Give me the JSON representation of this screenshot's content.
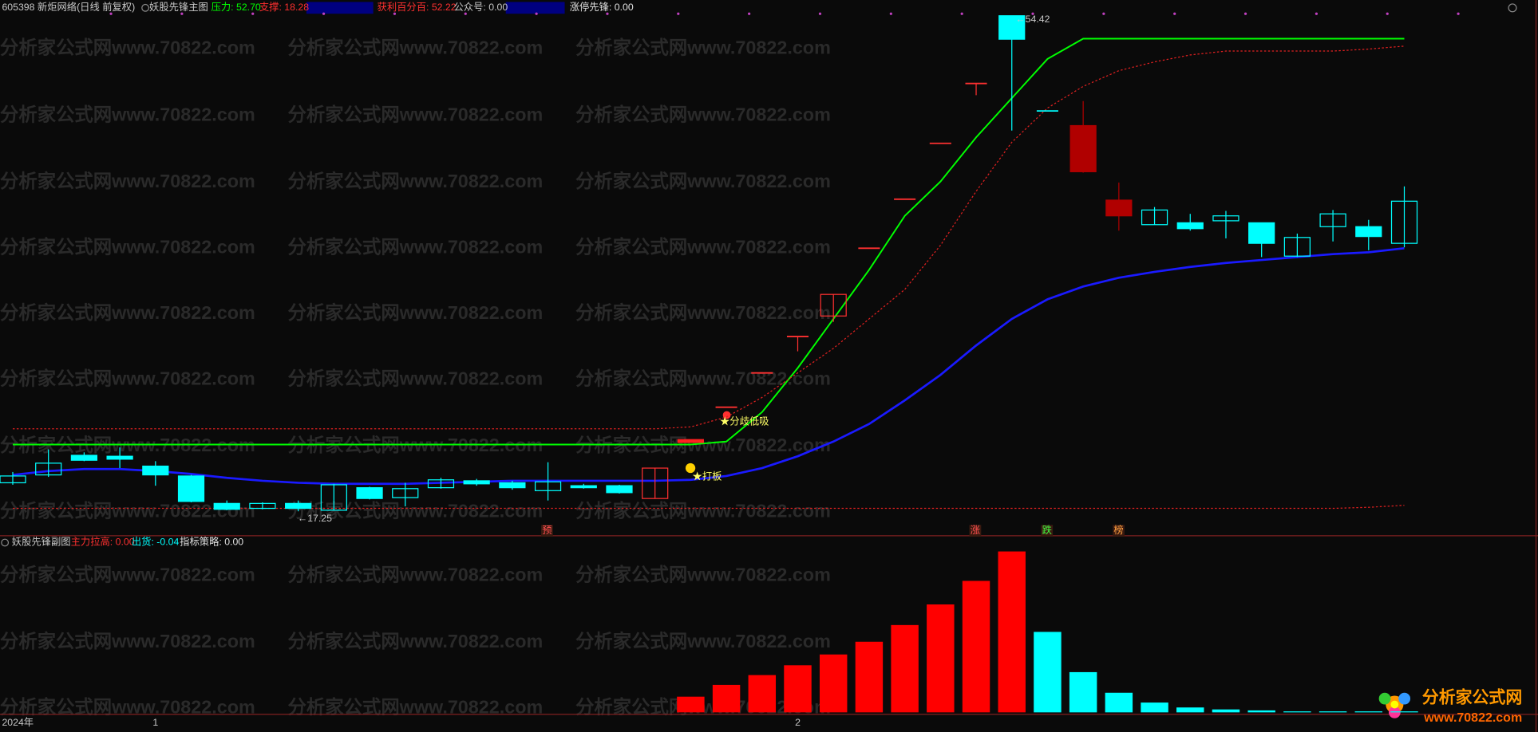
{
  "watermark": "分析家公式网www.70822.com",
  "logo": {
    "title": "分析家公式网",
    "url": "www.70822.com"
  },
  "chart_data": [
    {
      "type": "candlestick",
      "header": [
        {
          "text": "605398 新炬网络(日线 前复权)",
          "color": "#c8c8c8"
        },
        {
          "text": "妖股先锋主图",
          "color": "#c8c8c8"
        },
        {
          "text": "压力: 52.70",
          "color": "#00ff00"
        },
        {
          "text": "支撑: 18.28",
          "color": "#ff3030"
        },
        {
          "text": "获利百分百: 52.22",
          "color": "#ff3030"
        },
        {
          "text": "公众号: 0.00",
          "color": "#c8c8c8"
        },
        {
          "text": "涨停先锋: 0.00",
          "color": "#e0e0e0"
        }
      ],
      "categories": [
        "2024年",
        null,
        null,
        null,
        "1",
        null,
        null,
        null,
        null,
        null,
        null,
        null,
        null,
        null,
        null,
        null,
        null,
        null,
        null,
        null,
        null,
        null,
        "2",
        null,
        null,
        null,
        null,
        null,
        null,
        null,
        null,
        null,
        null,
        null,
        null,
        null,
        null,
        null,
        null,
        null
      ],
      "open": [
        19.39,
        19.98,
        21.45,
        21.38,
        20.64,
        19.9,
        17.84,
        17.47,
        17.84,
        17.33,
        19.02,
        18.28,
        19.02,
        19.54,
        19.39,
        18.8,
        19.17,
        19.17,
        18.21,
        22.41,
        25.06,
        27.63,
        30.36,
        31.9,
        36.98,
        40.66,
        44.85,
        49.34,
        54.42,
        47.28,
        46.18,
        40.59,
        38.75,
        38.89,
        39.04,
        38.89,
        36.39,
        38.6,
        38.6,
        37.35
      ],
      "close": [
        19.9,
        20.86,
        21.08,
        21.16,
        19.98,
        17.99,
        17.4,
        17.84,
        17.47,
        19.24,
        18.21,
        18.95,
        19.61,
        19.31,
        19.02,
        19.46,
        19.02,
        18.65,
        20.49,
        22.63,
        25.06,
        27.63,
        30.36,
        33.52,
        36.98,
        40.66,
        44.85,
        49.34,
        52.66,
        47.28,
        42.72,
        39.41,
        39.85,
        38.45,
        39.41,
        37.35,
        37.79,
        39.56,
        37.86,
        40.51
      ],
      "high": [
        20.2,
        21.89,
        21.67,
        22.04,
        21.01,
        19.98,
        18.06,
        17.92,
        18.06,
        19.31,
        19.09,
        19.39,
        19.76,
        19.68,
        19.54,
        20.93,
        19.31,
        19.24,
        20.49,
        22.63,
        25.06,
        27.63,
        30.36,
        33.52,
        36.98,
        40.66,
        44.85,
        49.34,
        54.42,
        47.28,
        48.02,
        41.91,
        40.07,
        39.56,
        39.78,
        38.89,
        38.08,
        39.85,
        39.11,
        41.62
      ],
      "low": [
        19.24,
        19.83,
        21.01,
        20.49,
        19.17,
        17.92,
        17.33,
        17.4,
        17.25,
        17.3,
        18.14,
        17.62,
        18.95,
        19.17,
        18.87,
        18.06,
        18.95,
        18.58,
        18.21,
        22.41,
        25.06,
        27.63,
        29.25,
        31.46,
        36.98,
        40.66,
        44.85,
        48.46,
        45.81,
        47.28,
        42.65,
        38.3,
        38.75,
        38.3,
        37.72,
        36.32,
        36.32,
        37.49,
        36.83,
        37.05
      ],
      "colors": [
        "#00ffff",
        "#00ffff",
        "#00ffff",
        "#00ffff",
        "#00ffff",
        "#00ffff",
        "#00ffff",
        "#00ffff",
        "#00ffff",
        "#00ffff",
        "#00ffff",
        "#00ffff",
        "#00ffff",
        "#00ffff",
        "#00ffff",
        "#00ffff",
        "#00ffff",
        "#00ffff",
        "#ff3030",
        "#ff2020",
        "#ff3030",
        "#ff3030",
        "#ff3030",
        "#ff3030",
        "#ff3030",
        "#ff3030",
        "#ff3030",
        "#ff3030",
        "#00ffff",
        "#00ffff",
        "#b00000",
        "#b00000",
        "#00ffff",
        "#00ffff",
        "#00ffff",
        "#00ffff",
        "#00ffff",
        "#00ffff",
        "#00ffff",
        "#00ffff"
      ],
      "hollow": [
        true,
        true,
        false,
        false,
        false,
        false,
        false,
        true,
        false,
        true,
        false,
        true,
        true,
        false,
        false,
        true,
        false,
        false,
        true,
        false,
        false,
        false,
        false,
        true,
        false,
        false,
        false,
        false,
        false,
        true,
        false,
        false,
        true,
        false,
        true,
        false,
        true,
        true,
        false,
        true
      ],
      "lines": [
        {
          "color": "#00ff00",
          "dash": false,
          "width": 1.6,
          "values": [
            22.26,
            22.26,
            22.26,
            22.26,
            22.26,
            22.26,
            22.26,
            22.26,
            22.26,
            22.26,
            22.26,
            22.26,
            22.26,
            22.26,
            22.26,
            22.26,
            22.26,
            22.26,
            22.26,
            22.26,
            22.48,
            24.69,
            28.0,
            31.68,
            35.36,
            39.41,
            41.98,
            45.3,
            48.24,
            51.18,
            52.7,
            52.7,
            52.7,
            52.7,
            52.7,
            52.7,
            52.7,
            52.7,
            52.7,
            52.7
          ]
        },
        {
          "color": "#e02020",
          "dash": true,
          "width": 1,
          "values": [
            23.44,
            23.44,
            23.44,
            23.44,
            23.44,
            23.44,
            23.44,
            23.44,
            23.44,
            23.44,
            23.44,
            23.44,
            23.44,
            23.44,
            23.44,
            23.44,
            23.44,
            23.44,
            23.44,
            23.58,
            24.32,
            25.79,
            27.63,
            29.47,
            31.68,
            33.89,
            37.2,
            41.25,
            44.93,
            47.5,
            49.12,
            50.3,
            50.96,
            51.48,
            51.77,
            51.77,
            51.77,
            51.77,
            51.92,
            52.14
          ]
        },
        {
          "color": "#e02020",
          "dash": true,
          "width": 1,
          "values": [
            17.47,
            17.47,
            17.47,
            17.47,
            17.47,
            17.47,
            17.47,
            17.47,
            17.47,
            17.47,
            17.47,
            17.47,
            17.47,
            17.47,
            17.47,
            17.47,
            17.47,
            17.47,
            17.47,
            17.47,
            17.47,
            17.47,
            17.47,
            17.47,
            17.47,
            17.47,
            17.47,
            17.47,
            17.47,
            17.47,
            17.47,
            17.47,
            17.47,
            17.47,
            17.47,
            17.47,
            17.47,
            17.47,
            17.55,
            17.7
          ]
        },
        {
          "color": "#1a1aff",
          "dash": false,
          "width": 2.2,
          "values": [
            19.98,
            20.27,
            20.42,
            20.42,
            20.27,
            20.05,
            19.76,
            19.54,
            19.39,
            19.31,
            19.31,
            19.31,
            19.39,
            19.46,
            19.54,
            19.54,
            19.54,
            19.54,
            19.54,
            19.61,
            19.9,
            20.49,
            21.38,
            22.48,
            23.8,
            25.57,
            27.48,
            29.69,
            31.68,
            33.15,
            34.11,
            34.77,
            35.21,
            35.58,
            35.88,
            36.1,
            36.32,
            36.54,
            36.68,
            36.98
          ]
        }
      ],
      "annotations": [
        {
          "text": "←17.25",
          "color": "#c8c8c8"
        },
        {
          "text": "←54.42",
          "color": "#c8c8c8"
        },
        {
          "text": "★分歧低吸",
          "color": "#ffff66"
        },
        {
          "text": "★打板",
          "color": "#ffff66"
        },
        {
          "text": "预",
          "color": "#ff5050"
        },
        {
          "text": "涨",
          "color": "#ff5050"
        },
        {
          "text": "跌",
          "color": "#40ff40"
        },
        {
          "text": "榜",
          "color": "#ffa040"
        }
      ],
      "ylim": [
        15.49,
        55.6
      ]
    },
    {
      "type": "bar",
      "header": [
        {
          "text": "妖股先锋副图",
          "color": "#c8c8c8"
        },
        {
          "text": "主力拉高: 0.00",
          "color": "#ff3030"
        },
        {
          "text": "出货: -0.04",
          "color": "#00ffff"
        },
        {
          "text": "指标策略: 0.00",
          "color": "#e0e0e0"
        }
      ],
      "series": [
        {
          "color": "#ff0000",
          "values": [
            null,
            null,
            null,
            null,
            null,
            null,
            null,
            null,
            null,
            null,
            null,
            null,
            null,
            null,
            null,
            null,
            null,
            null,
            null,
            16,
            28,
            38,
            48,
            59,
            72,
            89,
            110,
            134,
            164,
            null,
            null,
            null,
            null,
            null,
            null,
            null,
            null,
            null,
            null,
            null
          ]
        },
        {
          "color": "#00ffff",
          "values": [
            null,
            null,
            null,
            null,
            null,
            null,
            null,
            null,
            null,
            null,
            null,
            null,
            null,
            null,
            null,
            null,
            null,
            null,
            null,
            null,
            null,
            null,
            null,
            null,
            null,
            null,
            null,
            null,
            null,
            82,
            41,
            20,
            10,
            5,
            3,
            2,
            1,
            1,
            1,
            1
          ]
        }
      ],
      "ylim": [
        0,
        176
      ]
    }
  ]
}
